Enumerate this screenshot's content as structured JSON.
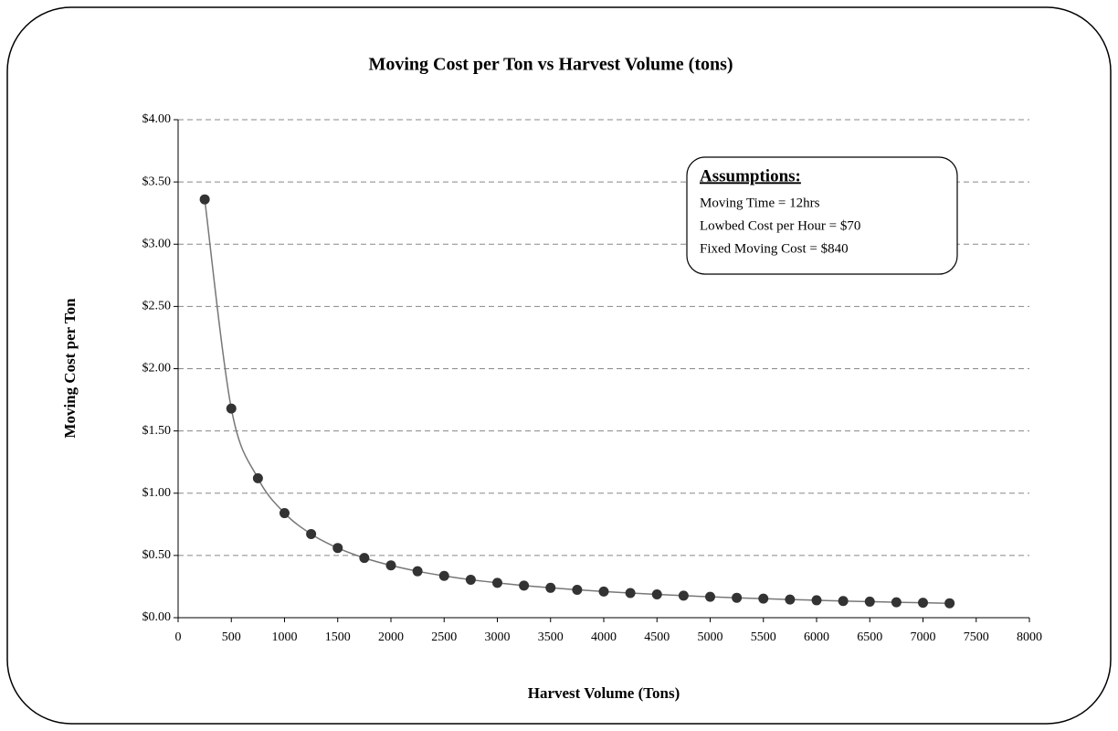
{
  "chart_data": {
    "type": "scatter",
    "title": "Moving Cost per Ton vs Harvest Volume (tons)",
    "x_label": "Harvest Volume (Tons)",
    "y_label": "Moving Cost per Ton",
    "x": [
      250,
      500,
      750,
      1000,
      1250,
      1500,
      1750,
      2000,
      2250,
      2500,
      2750,
      3000,
      3250,
      3500,
      3750,
      4000,
      4250,
      4500,
      4750,
      5000,
      5250,
      5500,
      5750,
      6000,
      6250,
      6500,
      6750,
      7000,
      7250
    ],
    "values": [
      3.36,
      1.68,
      1.12,
      0.84,
      0.672,
      0.56,
      0.48,
      0.42,
      0.373,
      0.336,
      0.305,
      0.28,
      0.258,
      0.24,
      0.224,
      0.21,
      0.198,
      0.187,
      0.177,
      0.168,
      0.16,
      0.153,
      0.146,
      0.14,
      0.134,
      0.129,
      0.124,
      0.12,
      0.116
    ],
    "color": "#333333",
    "line_color": "#777777",
    "xlim": [
      0,
      8000
    ],
    "xticks": [
      0,
      500,
      1000,
      1500,
      2000,
      2500,
      3000,
      3500,
      4000,
      4500,
      5000,
      5500,
      6000,
      6500,
      7000,
      7500,
      8000
    ],
    "ylim": [
      0,
      4
    ],
    "yticks": [
      {
        "value": 0,
        "label": "$0.00"
      },
      {
        "value": 0.5,
        "label": "$0.50"
      },
      {
        "value": 1,
        "label": "$1.00"
      },
      {
        "value": 1.5,
        "label": "$1.50"
      },
      {
        "value": 2,
        "label": "$2.00"
      },
      {
        "value": 2.5,
        "label": "$2.50"
      },
      {
        "value": 3,
        "label": "$3.00"
      },
      {
        "value": 3.5,
        "label": "$3.50"
      },
      {
        "value": 4,
        "label": "$4.00"
      }
    ],
    "grid": true,
    "annotation": {
      "title": "Assumptions:",
      "lines": [
        "Moving Time = 12hrs",
        "Lowbed Cost per Hour = $70",
        "Fixed Moving Cost = $840"
      ]
    }
  }
}
